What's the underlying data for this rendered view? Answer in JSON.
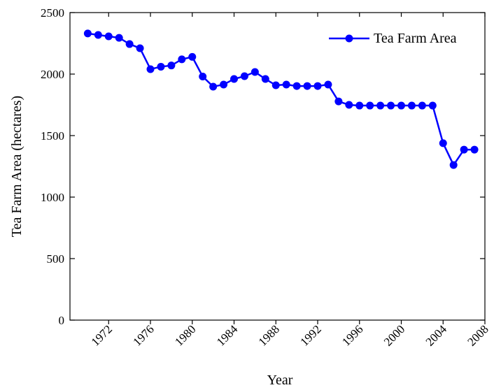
{
  "chart_data": {
    "type": "line",
    "x_label": "Year",
    "y_label": "Tea Farm Area (hectares)",
    "x": [
      1970,
      1971,
      1972,
      1973,
      1974,
      1975,
      1976,
      1977,
      1978,
      1979,
      1980,
      1981,
      1982,
      1983,
      1984,
      1985,
      1986,
      1987,
      1988,
      1989,
      1990,
      1991,
      1992,
      1993,
      1994,
      1995,
      1996,
      1997,
      1998,
      1999,
      2000,
      2001,
      2002,
      2003,
      2004,
      2005,
      2006,
      2007
    ],
    "series": [
      {
        "name": "Tea Farm Area",
        "color": "#0000ff",
        "values": [
          2330,
          2318,
          2307,
          2295,
          2244,
          2210,
          2040,
          2060,
          2070,
          2120,
          2140,
          1980,
          1898,
          1915,
          1960,
          1983,
          2017,
          1960,
          1909,
          1915,
          1903,
          1903,
          1903,
          1915,
          1778,
          1750,
          1744,
          1744,
          1744,
          1744,
          1744,
          1744,
          1744,
          1744,
          1438,
          1261,
          1386,
          1386
        ]
      }
    ],
    "xlim": [
      1968.3,
      2008
    ],
    "xticks": [
      1972,
      1976,
      1980,
      1984,
      1988,
      1992,
      1996,
      2000,
      2004,
      2008
    ],
    "ylim": [
      0,
      2500
    ],
    "yticks": [
      0,
      500,
      1000,
      1500,
      2000,
      2500
    ],
    "legend": "top-right"
  }
}
